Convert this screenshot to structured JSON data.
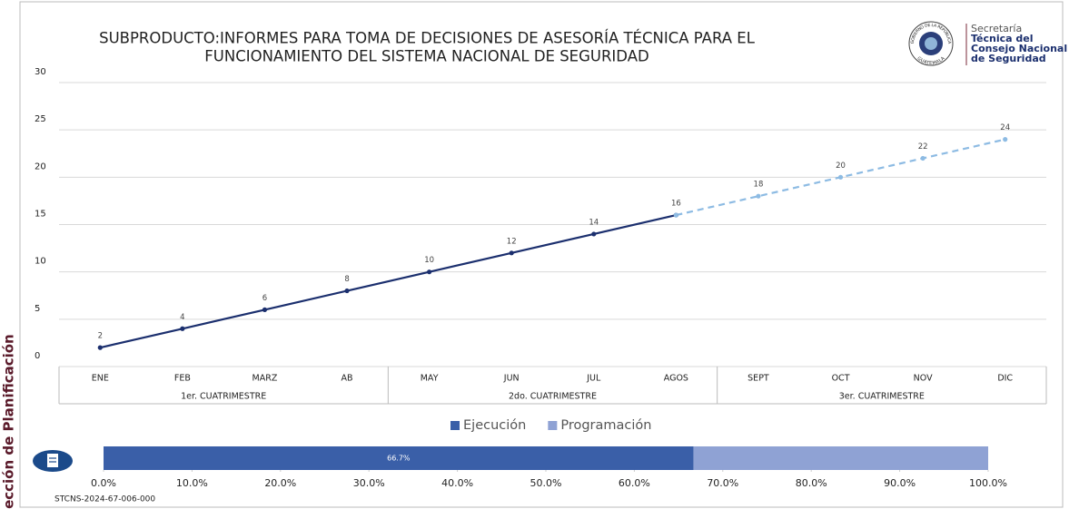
{
  "side_label": "Sección de Planificación",
  "logo": {
    "seal_top": "GOBIERNO DE LA REPÚBLICA",
    "seal_bottom": "GUATEMALA",
    "lines": [
      "Secretaría",
      "Técnica del",
      "Consejo Nacional",
      "de Seguridad"
    ]
  },
  "footer_code": "STCNS-2024-67-006-000",
  "chart_data": [
    {
      "type": "line",
      "title": [
        "SUBPRODUCTO:INFORMES PARA TOMA DE DECISIONES DE ASESORÍA TÉCNICA PARA EL",
        "FUNCIONAMIENTO DEL SISTEMA NACIONAL DE SEGURIDAD"
      ],
      "categories": [
        "ENE",
        "FEB",
        "MARZ",
        "AB",
        "MAY",
        "JUN",
        "JUL",
        "AGOS",
        "SEPT",
        "OCT",
        "NOV",
        "DIC"
      ],
      "groups": [
        "1er. CUATRIMESTRE",
        "2do. CUATRIMESTRE",
        "3er. CUATRIMESTRE"
      ],
      "series": [
        {
          "color": "#1b2f6e",
          "dashed": false,
          "values": [
            2,
            4,
            6,
            8,
            10,
            12,
            14,
            16,
            null,
            null,
            null,
            null
          ]
        },
        {
          "color": "#8dbbe3",
          "dashed": true,
          "values": [
            null,
            null,
            null,
            null,
            null,
            null,
            null,
            16,
            18,
            20,
            22,
            24
          ]
        }
      ],
      "ylim": [
        0,
        30
      ],
      "yticks": [
        0,
        5,
        10,
        15,
        20,
        25,
        30
      ],
      "grid": true
    },
    {
      "type": "bar",
      "orientation": "horizontal",
      "stacked": true,
      "series": [
        {
          "name": "Ejecución",
          "color": "#3a5fa8",
          "values": [
            66.7
          ],
          "value_labels": [
            "66.7%"
          ]
        },
        {
          "name": "Programación",
          "color": "#8fa2d4",
          "values": [
            33.3
          ]
        }
      ],
      "xlim": [
        0,
        100
      ],
      "xticks": [
        {
          "value": 0,
          "label": "0.0%"
        },
        {
          "value": 10,
          "label": "10.0%"
        },
        {
          "value": 20,
          "label": "20.0%"
        },
        {
          "value": 30,
          "label": "30.0%"
        },
        {
          "value": 40,
          "label": "40.0%"
        },
        {
          "value": 50,
          "label": "50.0%"
        },
        {
          "value": 60,
          "label": "60.0%"
        },
        {
          "value": 70,
          "label": "70.0%"
        },
        {
          "value": 80,
          "label": "80.0%"
        },
        {
          "value": 90,
          "label": "90.0%"
        },
        {
          "value": 100,
          "label": "100.0%"
        }
      ]
    }
  ]
}
